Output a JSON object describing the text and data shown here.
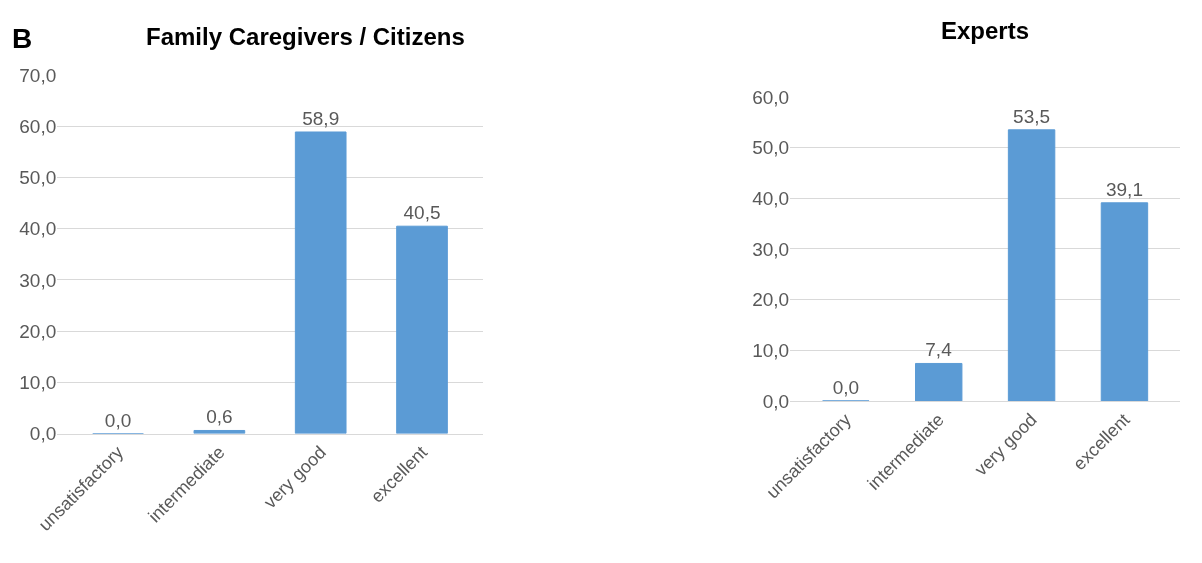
{
  "chart_data": [
    {
      "type": "bar",
      "title": "Family Caregivers / Citizens",
      "annotations": [
        "B"
      ],
      "categories": [
        "unsatisfactory",
        "intermediate",
        "very good",
        "excellent"
      ],
      "values": [
        0.0,
        0.6,
        58.9,
        40.5
      ],
      "value_labels": [
        "0,0",
        "0,6",
        "58,9",
        "40,5"
      ],
      "color": "#5b9bd5",
      "ylim": [
        0,
        70
      ],
      "yticks": [
        {
          "value": 0,
          "label": "0,0"
        },
        {
          "value": 10,
          "label": "10,0"
        },
        {
          "value": 20,
          "label": "20,0"
        },
        {
          "value": 30,
          "label": "30,0"
        },
        {
          "value": 40,
          "label": "40,0"
        },
        {
          "value": 50,
          "label": "50,0"
        },
        {
          "value": 60,
          "label": "60,0"
        },
        {
          "value": 70,
          "label": "70,0"
        }
      ],
      "grid": "y"
    },
    {
      "type": "bar",
      "title": "Experts",
      "categories": [
        "unsatisfactory",
        "intermediate",
        "very good",
        "excellent"
      ],
      "values": [
        0.0,
        7.4,
        53.5,
        39.1
      ],
      "value_labels": [
        "0,0",
        "7,4",
        "53,5",
        "39,1"
      ],
      "color": "#5b9bd5",
      "ylim": [
        0,
        60
      ],
      "yticks": [
        {
          "value": 0,
          "label": "0,0"
        },
        {
          "value": 10,
          "label": "10,0"
        },
        {
          "value": 20,
          "label": "20,0"
        },
        {
          "value": 30,
          "label": "30,0"
        },
        {
          "value": 40,
          "label": "40,0"
        },
        {
          "value": 50,
          "label": "50,0"
        },
        {
          "value": 60,
          "label": "60,0"
        }
      ],
      "grid": "y"
    }
  ]
}
